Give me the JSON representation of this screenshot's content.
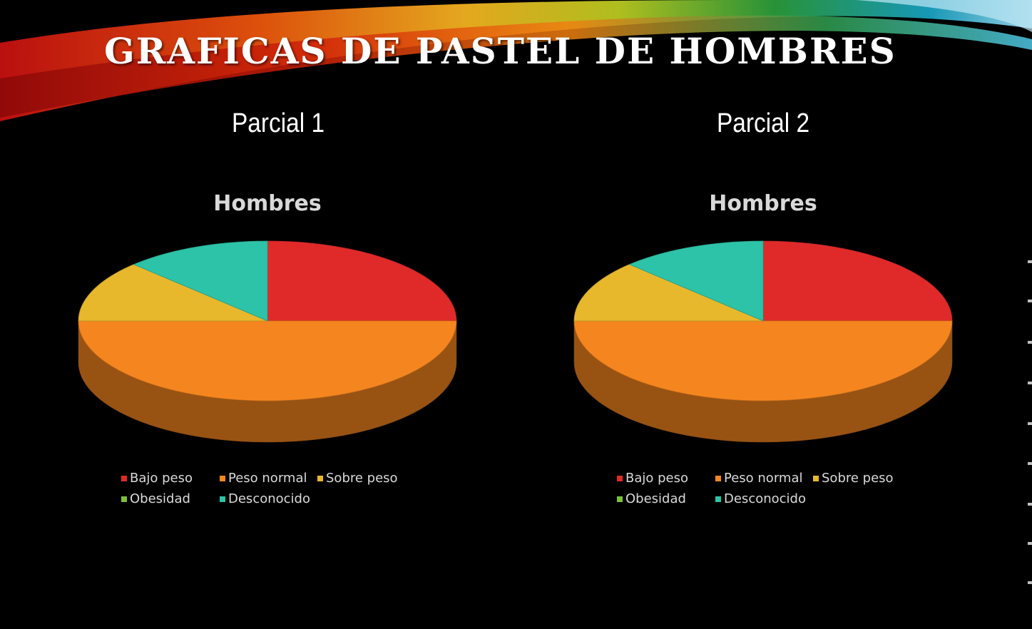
{
  "slide": {
    "title": "GRAFICAS DE PASTEL DE HOMBRES"
  },
  "colors": {
    "Bajo peso": "#e02a2a",
    "Peso normal": "#f5861f",
    "Sobre peso": "#e8b82c",
    "Obesidad": "#7cbf3b",
    "Desconocido": "#2dc3a8"
  },
  "chart_data": [
    {
      "panel_label": "Parcial 1",
      "type": "pie",
      "style": "3d",
      "title": "Hombres",
      "categories": [
        "Bajo peso",
        "Peso normal",
        "Sobre peso",
        "Obesidad",
        "Desconocido"
      ],
      "values": [
        25,
        50,
        12.5,
        0,
        12.5
      ],
      "legend": "bottom"
    },
    {
      "panel_label": "Parcial 2",
      "type": "pie",
      "style": "3d",
      "title": "Hombres",
      "categories": [
        "Bajo peso",
        "Peso normal",
        "Sobre peso",
        "Obesidad",
        "Desconocido"
      ],
      "values": [
        25,
        50,
        12.5,
        0,
        12.5
      ],
      "legend": "bottom"
    }
  ]
}
